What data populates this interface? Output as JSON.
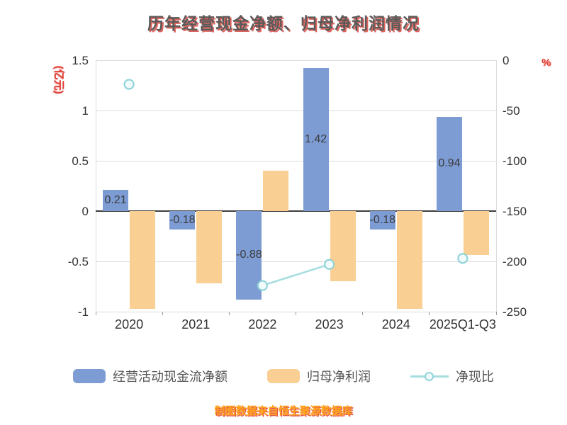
{
  "title": "历年经营现金净额、归母净利润情况",
  "left_axis_unit": "(亿元)",
  "right_axis_unit": "%",
  "caption": "制图数据来自恒生聚源数据库",
  "chart_data": {
    "type": "bar",
    "subtype": "grouped bars with overlay line on secondary axis",
    "categories": [
      "2020",
      "2021",
      "2022",
      "2023",
      "2024",
      "2025Q1-Q3"
    ],
    "series": [
      {
        "name": "经营活动现金流净额",
        "type": "bar",
        "color": "#7d9cd4",
        "axis": "left",
        "values": [
          0.21,
          -0.18,
          -0.88,
          1.42,
          -0.18,
          0.94
        ],
        "labels": [
          "0.21",
          "-0.18",
          "-0.88",
          "1.42",
          "-0.18",
          "0.94"
        ]
      },
      {
        "name": "归母净利润",
        "type": "bar",
        "color": "#f9cf93",
        "axis": "left",
        "values": [
          -0.97,
          -0.72,
          0.4,
          -0.7,
          -0.97,
          -0.44
        ],
        "labels": null
      },
      {
        "name": "净现比",
        "type": "line",
        "color": "#a5dde0",
        "marker_fill": "#f2fbfb",
        "marker_stroke": "#8fd4d9",
        "axis": "right",
        "values": [
          -24,
          null,
          -224,
          -203,
          null,
          -197
        ]
      }
    ],
    "left_axis": {
      "min": -1,
      "max": 1.5,
      "ticks": [
        1.5,
        1,
        0.5,
        0,
        -0.5,
        -1
      ],
      "tick_labels": [
        "1.5",
        "1",
        "0.5",
        "0",
        "-0.5",
        "-1"
      ]
    },
    "right_axis": {
      "min": -250,
      "max": 0,
      "ticks": [
        0,
        -50,
        -100,
        -150,
        -200,
        -250
      ],
      "tick_labels": [
        "0",
        "-50",
        "-100",
        "-150",
        "-200",
        "-250"
      ]
    },
    "grid": true,
    "legend_position": "bottom"
  }
}
